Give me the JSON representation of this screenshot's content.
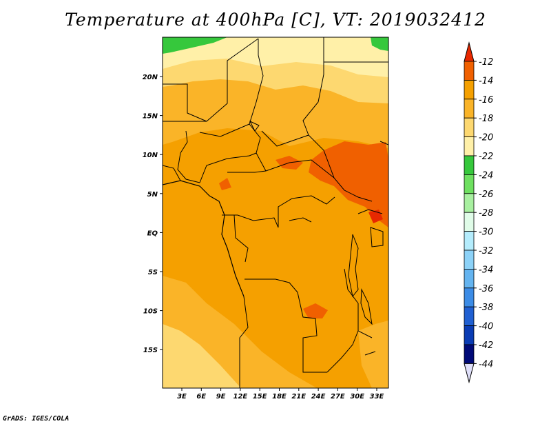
{
  "title": "Temperature at 400hPa [C], VT: 2019032412",
  "credit": "GrADS: IGES/COLA",
  "map": {
    "lon_labels": [
      "3E",
      "6E",
      "9E",
      "12E",
      "15E",
      "18E",
      "21E",
      "24E",
      "27E",
      "30E",
      "33E"
    ],
    "lat_labels": [
      "20N",
      "15N",
      "10N",
      "5N",
      "EQ",
      "5S",
      "10S",
      "15S"
    ]
  },
  "colorbar": {
    "labels": [
      "-12",
      "-14",
      "-16",
      "-18",
      "-20",
      "-22",
      "-24",
      "-26",
      "-28",
      "-30",
      "-32",
      "-34",
      "-36",
      "-38",
      "-40",
      "-42",
      "-44"
    ],
    "colors": [
      "#e82800",
      "#f06000",
      "#f5a000",
      "#fab428",
      "#fdd870",
      "#fff0a8",
      "#36c83c",
      "#6ee060",
      "#a8f0a0",
      "#e0fce8",
      "#b4ecfc",
      "#8cd2f8",
      "#64b4f0",
      "#3c8ce6",
      "#2060d2",
      "#0a3cb4",
      "#000a78",
      "#e0e0fa"
    ]
  }
}
